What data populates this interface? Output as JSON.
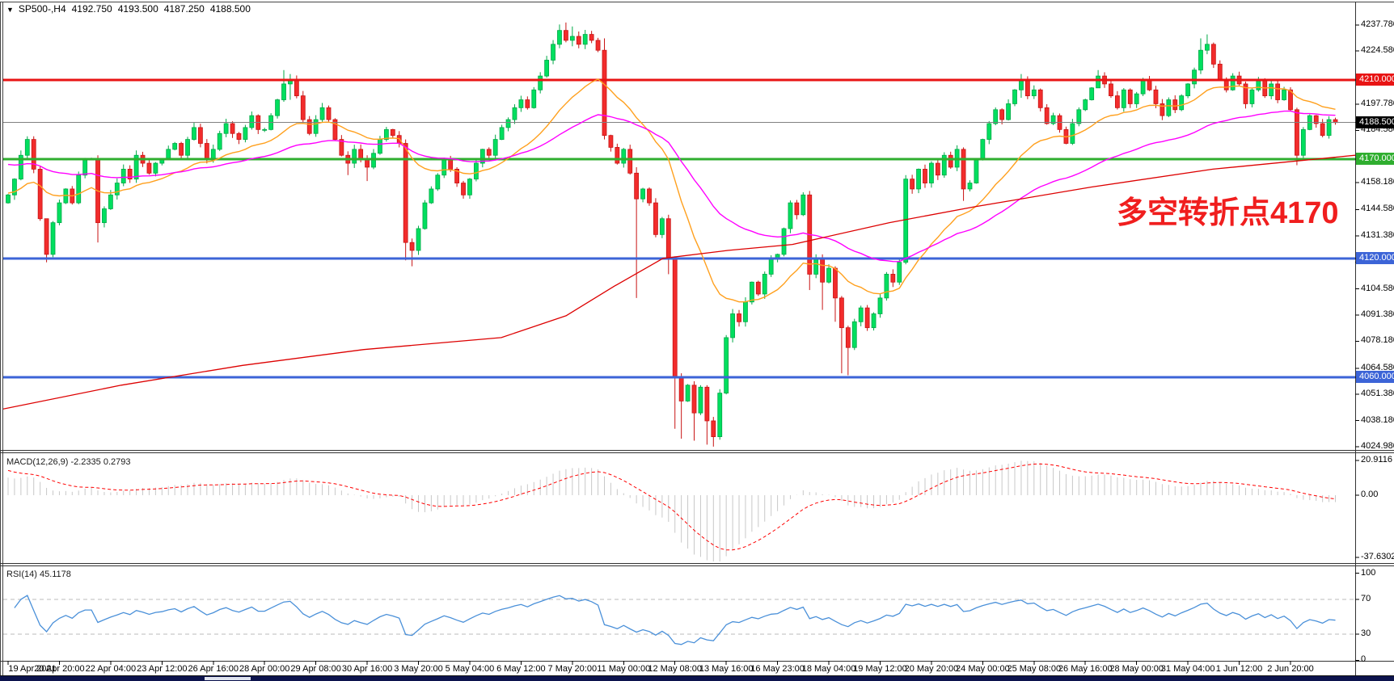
{
  "header": {
    "icon_glyph": "▼",
    "symbol": "SP500-,H4",
    "open": "4192.750",
    "high": "4193.500",
    "low": "4187.250",
    "close": "4188.500"
  },
  "annotation": {
    "text": "多空转折点4170",
    "color": "#f01e1e"
  },
  "colors": {
    "candle_up_fill": "#00df5f",
    "candle_up_stroke": "#00a846",
    "candle_down_fill": "#f22c2c",
    "candle_down_stroke": "#c81414",
    "hline_red": "#e81414",
    "hline_green": "#2fae2f",
    "hline_blue": "#3c64d7",
    "current_price_line": "#808080",
    "ma_orange": "#ffa01e",
    "ma_magenta": "#ff00ff",
    "ma_long_red": "#dd0000",
    "macd_hist": "#c8c8c8",
    "macd_signal": "#ff0000",
    "rsi_line": "#4a90d9",
    "rsi_level_dash": "#bbbbbb"
  },
  "chart_data": {
    "type": "candlestick",
    "symbol_timeframe": "SP500-,H4",
    "timeframe": "H4",
    "ylim": [
      4024.98,
      4237.78
    ],
    "first_open": 4148,
    "closes": [
      4152,
      4160,
      4172,
      4180,
      4165,
      4140,
      4122,
      4138,
      4148,
      4155,
      4148,
      4162,
      4170,
      4170,
      4138,
      4145,
      4152,
      4158,
      4165,
      4160,
      4172,
      4168,
      4163,
      4168,
      4170,
      4175,
      4178,
      4172,
      4180,
      4186,
      4178,
      4170,
      4175,
      4183,
      4188,
      4183,
      4180,
      4186,
      4192,
      4185,
      4185,
      4192,
      4200,
      4208,
      4210,
      4202,
      4190,
      4183,
      4190,
      4196,
      4190,
      4180,
      4172,
      4168,
      4175,
      4170,
      4166,
      4173,
      4180,
      4185,
      4182,
      4178,
      4128,
      4124,
      4135,
      4148,
      4155,
      4162,
      4170,
      4165,
      4158,
      4152,
      4160,
      4168,
      4175,
      4172,
      4180,
      4186,
      4190,
      4196,
      4200,
      4196,
      4205,
      4212,
      4220,
      4228,
      4235,
      4230,
      4232,
      4228,
      4233,
      4230,
      4225,
      4182,
      4176,
      4168,
      4175,
      4163,
      4150,
      4155,
      4148,
      4132,
      4140,
      4120,
      4060,
      4048,
      4056,
      4042,
      4055,
      4038,
      4030,
      4052,
      4080,
      4092,
      4088,
      4098,
      4108,
      4102,
      4112,
      4120,
      4122,
      4135,
      4148,
      4142,
      4152,
      4112,
      4120,
      4108,
      4115,
      4100,
      4085,
      4075,
      4088,
      4095,
      4085,
      4092,
      4100,
      4112,
      4108,
      4118,
      4160,
      4155,
      4165,
      4158,
      4168,
      4162,
      4172,
      4166,
      4175,
      4155,
      4158,
      4170,
      4180,
      4188,
      4195,
      4190,
      4198,
      4205,
      4210,
      4202,
      4205,
      4196,
      4188,
      4192,
      4185,
      4178,
      4188,
      4195,
      4200,
      4206,
      4212,
      4208,
      4202,
      4196,
      4205,
      4198,
      4203,
      4210,
      4205,
      4198,
      4192,
      4200,
      4195,
      4202,
      4208,
      4215,
      4225,
      4228,
      4218,
      4210,
      4205,
      4212,
      4208,
      4198,
      4205,
      4210,
      4202,
      4208,
      4200,
      4205,
      4195,
      4172,
      4185,
      4192,
      4188,
      4182,
      4190,
      4188.5
    ],
    "wick_overrides": {
      "6": [
        4128,
        4118
      ],
      "14": [
        4172,
        4128
      ],
      "43": [
        4215,
        4199
      ],
      "44": [
        4213,
        4200
      ],
      "53": [
        4174,
        4162
      ],
      "56": [
        4172,
        4159
      ],
      "62": [
        4180,
        4119
      ],
      "63": [
        4130,
        4116
      ],
      "86": [
        4238,
        4226
      ],
      "87": [
        4239,
        4229
      ],
      "88": [
        4237,
        4227
      ],
      "93": [
        4231,
        4180
      ],
      "98": [
        4166,
        4100
      ],
      "103": [
        4142,
        4112
      ],
      "104": [
        4121,
        4034
      ],
      "105": [
        4062,
        4029
      ],
      "107": [
        4058,
        4028
      ],
      "109": [
        4056,
        4026
      ],
      "110": [
        4040,
        4025
      ],
      "125": [
        4154,
        4104
      ],
      "127": [
        4122,
        4094
      ],
      "129": [
        4116,
        4088
      ],
      "130": [
        4101,
        4062
      ],
      "131": [
        4086,
        4061
      ],
      "140": [
        4162,
        4117
      ],
      "149": [
        4176,
        4149
      ],
      "158": [
        4213,
        4201
      ],
      "170": [
        4215,
        4206
      ],
      "186": [
        4231,
        4213
      ],
      "187": [
        4233,
        4223
      ],
      "201": [
        4196,
        4167
      ]
    },
    "hlines": [
      {
        "price": 4210,
        "label": "4210.000",
        "color": "#e81414",
        "width": 3,
        "label_bg": "#e81414"
      },
      {
        "price": 4188.5,
        "label": "4188.500",
        "color": "#808080",
        "width": 1,
        "label_bg": "#000000"
      },
      {
        "price": 4170,
        "label": "4170.000",
        "color": "#2fae2f",
        "width": 3,
        "label_bg": "#2fae2f"
      },
      {
        "price": 4120,
        "label": "4120.000",
        "color": "#3c64d7",
        "width": 3,
        "label_bg": "#3c64d7"
      },
      {
        "price": 4060,
        "label": "4060.000",
        "color": "#3c64d7",
        "width": 3,
        "label_bg": "#3c64d7"
      }
    ],
    "price_ticks": [
      {
        "label": "4237.780",
        "price": 4237.78
      },
      {
        "label": "4224.580",
        "price": 4224.58
      },
      {
        "label": "4197.780",
        "price": 4197.78
      },
      {
        "label": "4184.580",
        "price": 4184.58
      },
      {
        "label": "4158.180",
        "price": 4158.18
      },
      {
        "label": "4144.580",
        "price": 4144.58
      },
      {
        "label": "4131.380",
        "price": 4131.38
      },
      {
        "label": "4118.180",
        "price": 4118.18
      },
      {
        "label": "4104.580",
        "price": 4104.58
      },
      {
        "label": "4091.380",
        "price": 4091.38
      },
      {
        "label": "4078.180",
        "price": 4078.18
      },
      {
        "label": "4064.580",
        "price": 4064.58
      },
      {
        "label": "4051.380",
        "price": 4051.38
      },
      {
        "label": "4038.180",
        "price": 4038.18
      },
      {
        "label": "4024.980",
        "price": 4024.98
      }
    ],
    "moving_averages": [
      {
        "name": "ma-fast-orange",
        "period": 20,
        "seed": 4153,
        "color": "#ffa01e"
      },
      {
        "name": "ma-mid-magenta",
        "period": 50,
        "seed": 4168,
        "color": "#ff00ff"
      }
    ],
    "ma_long": {
      "name": "ma-long-red",
      "color": "#dd0000",
      "points": [
        [
          4,
          4044
        ],
        [
          150,
          4056
        ],
        [
          300,
          4066
        ],
        [
          450,
          4074
        ],
        [
          620,
          4080
        ],
        [
          700,
          4091
        ],
        [
          760,
          4106
        ],
        [
          820,
          4120
        ],
        [
          900,
          4124
        ],
        [
          980,
          4127
        ],
        [
          1100,
          4138
        ],
        [
          1205,
          4146
        ],
        [
          1350,
          4156
        ],
        [
          1500,
          4165
        ],
        [
          1676,
          4172
        ]
      ]
    },
    "time_labels": [
      {
        "label": "19 Apr 2021",
        "bar": 0
      },
      {
        "label": "20 Apr 20:00",
        "bar": 8
      },
      {
        "label": "22 Apr 04:00",
        "bar": 16
      },
      {
        "label": "23 Apr 12:00",
        "bar": 24
      },
      {
        "label": "26 Apr 16:00",
        "bar": 32
      },
      {
        "label": "28 Apr 00:00",
        "bar": 40
      },
      {
        "label": "29 Apr 08:00",
        "bar": 48
      },
      {
        "label": "30 Apr 16:00",
        "bar": 56
      },
      {
        "label": "3 May 20:00",
        "bar": 64
      },
      {
        "label": "5 May 04:00",
        "bar": 72
      },
      {
        "label": "6 May 12:00",
        "bar": 80
      },
      {
        "label": "7 May 20:00",
        "bar": 88
      },
      {
        "label": "11 May 00:00",
        "bar": 96
      },
      {
        "label": "12 May 08:00",
        "bar": 104
      },
      {
        "label": "13 May 16:00",
        "bar": 112
      },
      {
        "label": "16 May 23:00",
        "bar": 120
      },
      {
        "label": "18 May 04:00",
        "bar": 128
      },
      {
        "label": "19 May 12:00",
        "bar": 136
      },
      {
        "label": "20 May 20:00",
        "bar": 144
      },
      {
        "label": "24 May 00:00",
        "bar": 152
      },
      {
        "label": "25 May 08:00",
        "bar": 160
      },
      {
        "label": "26 May 16:00",
        "bar": 168
      },
      {
        "label": "28 May 00:00",
        "bar": 176
      },
      {
        "label": "31 May 04:00",
        "bar": 184
      },
      {
        "label": "1 Jun 12:00",
        "bar": 192
      },
      {
        "label": "2 Jun 20:00",
        "bar": 200
      }
    ],
    "macd": {
      "label": "MACD(12,26,9) -2.2335 0.2793",
      "params": [
        12,
        26,
        9
      ],
      "main_value": "-2.2335",
      "signal_value": "0.2793",
      "axis": [
        {
          "label": "20.9116",
          "v": 20.9116
        },
        {
          "label": "0.00",
          "v": 0
        },
        {
          "label": "-37.6302",
          "v": -37.6302
        }
      ]
    },
    "rsi": {
      "label": "RSI(14) 45.1178",
      "period": 14,
      "value": "45.1178",
      "levels": [
        70,
        30
      ],
      "axis": [
        {
          "label": "100",
          "v": 100
        },
        {
          "label": "70",
          "v": 70
        },
        {
          "label": "30",
          "v": 30
        },
        {
          "label": "0",
          "v": 0
        }
      ]
    }
  }
}
